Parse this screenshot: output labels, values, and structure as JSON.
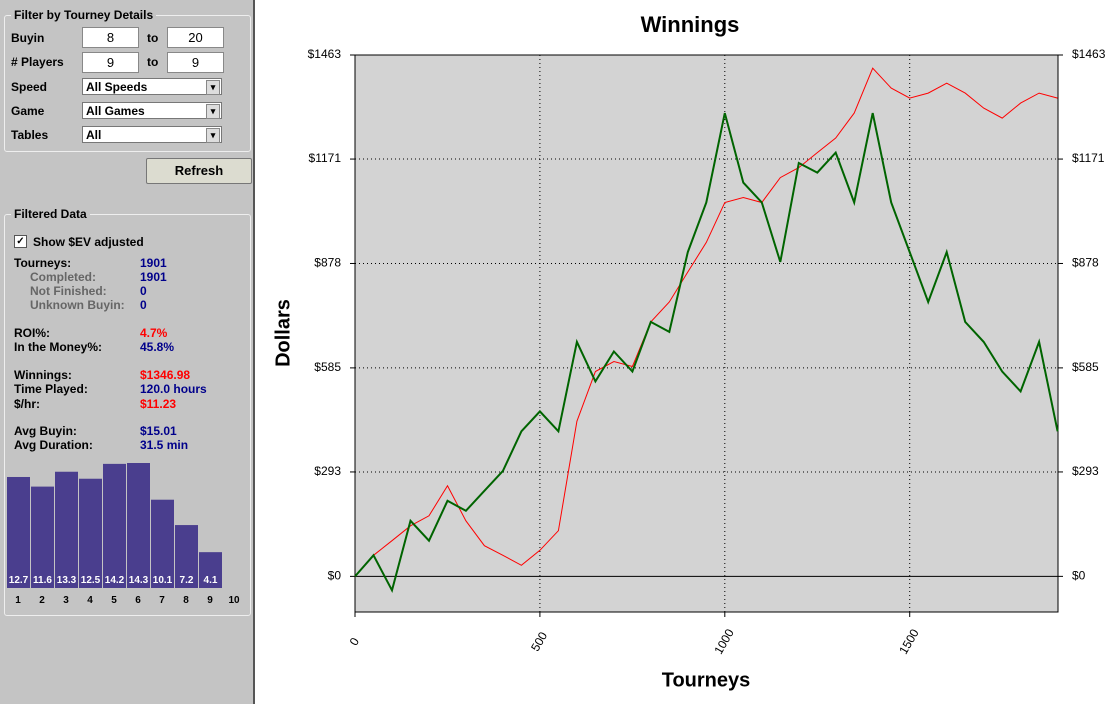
{
  "filter": {
    "title": "Filter by Tourney Details",
    "buyin": {
      "label": "Buyin",
      "from": "8",
      "to_label": "to",
      "to": "20"
    },
    "players": {
      "label": "# Players",
      "from": "9",
      "to_label": "to",
      "to": "9"
    },
    "speed": {
      "label": "Speed",
      "value": "All Speeds"
    },
    "game": {
      "label": "Game",
      "value": "All Games"
    },
    "tables": {
      "label": "Tables",
      "value": "All"
    },
    "button": "Refresh"
  },
  "filtered": {
    "title": "Filtered Data",
    "checkbox": "Show $EV adjusted",
    "stats": [
      {
        "label": "Tourneys:",
        "value": "1901"
      },
      {
        "label": "Completed:",
        "value": "1901"
      },
      {
        "label": "Not Finished:",
        "value": "0"
      },
      {
        "label": "Unknown Buyin:",
        "value": "0"
      },
      {
        "label": "ROI%:",
        "value": "4.7%"
      },
      {
        "label": "In the Money%:",
        "value": "45.8%"
      },
      {
        "label": "Winnings:",
        "value": "$1346.98"
      },
      {
        "label": "Time Played:",
        "value": "120.0 hours"
      },
      {
        "label": "$/hr:",
        "value": "$11.23"
      },
      {
        "label": "Avg Buyin:",
        "value": "$15.01"
      },
      {
        "label": "Avg Duration:",
        "value": "31.5 min"
      }
    ]
  },
  "chart_data": [
    {
      "type": "bar",
      "categories": [
        "1",
        "2",
        "3",
        "4",
        "5",
        "6",
        "7",
        "8",
        "9",
        "10"
      ],
      "values": [
        12.7,
        11.6,
        13.3,
        12.5,
        14.2,
        14.3,
        10.1,
        7.2,
        4.1,
        null
      ],
      "color": "#4a3e8e"
    },
    {
      "type": "line",
      "title": "Winnings",
      "x_label": "Tourneys",
      "y_label": "Dollars",
      "x": [
        0,
        50,
        100,
        150,
        200,
        250,
        300,
        350,
        400,
        450,
        500,
        550,
        600,
        650,
        700,
        750,
        800,
        850,
        900,
        950,
        1000,
        1050,
        1100,
        1150,
        1200,
        1250,
        1300,
        1350,
        1400,
        1450,
        1500,
        1550,
        1600,
        1650,
        1700,
        1750,
        1800,
        1850,
        1900
      ],
      "series": [
        {
          "color": "#ff0000",
          "values": [
            0,
            59,
            100,
            142,
            170,
            254,
            156,
            86,
            59,
            31,
            73,
            128,
            435,
            575,
            603,
            589,
            714,
            770,
            854,
            937,
            1049,
            1063,
            1049,
            1119,
            1147,
            1189,
            1230,
            1300,
            1426,
            1370,
            1342,
            1356,
            1384,
            1356,
            1314,
            1286,
            1328,
            1356,
            1342
          ]
        },
        {
          "color": "#006400",
          "values": [
            0,
            59,
            -39,
            156,
            100,
            212,
            184,
            240,
            296,
            407,
            463,
            407,
            658,
            547,
            631,
            575,
            714,
            686,
            910,
            1049,
            1300,
            1105,
            1049,
            882,
            1160,
            1133,
            1189,
            1049,
            1300,
            1049,
            910,
            770,
            910,
            714,
            658,
            575,
            519,
            658,
            407
          ]
        }
      ],
      "xlim": [
        0,
        1901
      ],
      "xticks": [
        0,
        500,
        1000,
        1500
      ],
      "ylim": [
        -100,
        1463
      ],
      "yticks": [
        {
          "value": 0,
          "label": "$0"
        },
        {
          "value": 293,
          "label": "$293"
        },
        {
          "value": 585,
          "label": "$585"
        },
        {
          "value": 878,
          "label": "$878"
        },
        {
          "value": 1171,
          "label": "$1171"
        },
        {
          "value": 1463,
          "label": "$1463"
        }
      ],
      "grid": true
    }
  ]
}
